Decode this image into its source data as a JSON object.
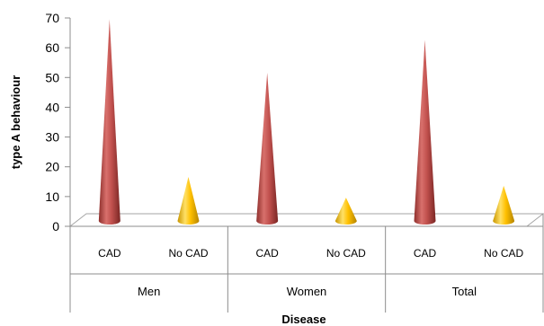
{
  "chart_data": {
    "type": "bar",
    "bar_shape": "cone",
    "ylabel": "type A behaviour",
    "xlabel": "Disease",
    "ylim": [
      0,
      70
    ],
    "yticks": [
      0,
      10,
      20,
      30,
      40,
      50,
      60,
      70
    ],
    "grid": false,
    "legend": "none",
    "groups": [
      {
        "name": "Men",
        "categories": [
          "CAD",
          "No CAD"
        ],
        "values": [
          69,
          16
        ]
      },
      {
        "name": "Women",
        "categories": [
          "CAD",
          "No CAD"
        ],
        "values": [
          51,
          9
        ]
      },
      {
        "name": "Total",
        "categories": [
          "CAD",
          "No CAD"
        ],
        "values": [
          62,
          13
        ]
      }
    ],
    "colors": {
      "CAD": "#c0504d",
      "No CAD": "#ffc000"
    }
  }
}
